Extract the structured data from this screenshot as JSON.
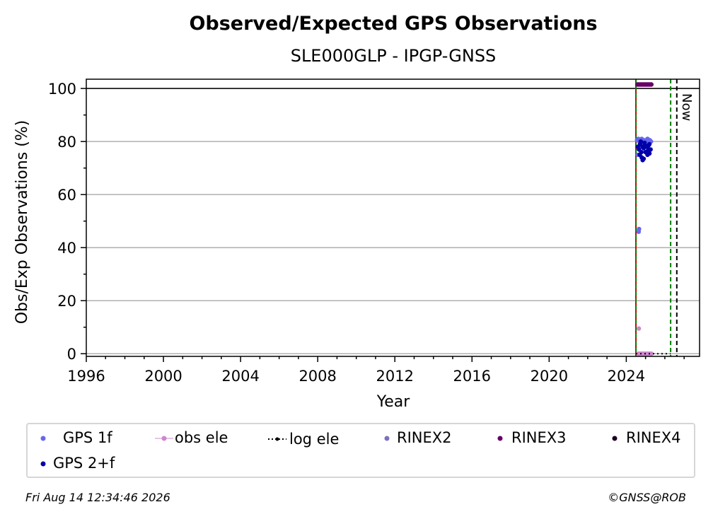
{
  "chart_data": {
    "type": "scatter",
    "title": "Observed/Expected GPS Observations",
    "subtitle": "SLE000GLP - IPGP-GNSS",
    "xlabel": "Year",
    "ylabel": "Obs/Exp Observations (%)",
    "xlim": [
      1996,
      2027.8
    ],
    "ylim": [
      -1,
      103.5
    ],
    "x_ticks": [
      1996,
      2000,
      2004,
      2008,
      2012,
      2016,
      2020,
      2024
    ],
    "y_ticks": [
      0,
      20,
      40,
      60,
      80,
      100
    ],
    "grid": "horizontal",
    "reference_line_y": 100,
    "vertical_lines": [
      {
        "x": 2024.5,
        "style": "solid",
        "color": "#cc0000"
      },
      {
        "x": 2024.5,
        "style": "dashed",
        "color": "#008000"
      },
      {
        "x": 2026.3,
        "style": "dashed",
        "color": "#008000"
      },
      {
        "x": 2026.62,
        "style": "dashed",
        "color": "#000000",
        "label": "Now"
      }
    ],
    "series": [
      {
        "name": "GPS 1f",
        "color": "#6666ee",
        "x": [
          2024.56,
          2024.62,
          2024.68,
          2024.74,
          2024.8,
          2024.86,
          2024.92,
          2024.98,
          2025.04,
          2025.1,
          2025.16,
          2025.22,
          2025.28,
          2024.6,
          2024.64,
          2024.66,
          2024.7
        ],
        "y": [
          80.5,
          81,
          80,
          80.5,
          81,
          80,
          80.5,
          80,
          80.5,
          81,
          80,
          80.5,
          80,
          75,
          46,
          47,
          79
        ]
      },
      {
        "name": "obs ele",
        "color": "#cc88cc",
        "x": [
          2024.62,
          2024.7,
          2024.8,
          2024.9,
          2025.0,
          2025.1,
          2025.2,
          2025.3,
          2024.65
        ],
        "y": [
          0,
          0,
          0,
          0,
          0,
          0,
          0,
          0,
          9.5
        ]
      },
      {
        "name": "log ele",
        "color": "#000000",
        "x": [
          2024.5,
          2026.3
        ],
        "y": [
          0,
          0
        ]
      },
      {
        "name": "RINEX2",
        "color": "#7f6fbf",
        "x": [],
        "y": []
      },
      {
        "name": "RINEX3",
        "color": "#660066",
        "x": [
          2024.58,
          2024.64,
          2024.7,
          2024.76,
          2024.82,
          2024.88,
          2024.94,
          2025.0,
          2025.06,
          2025.12,
          2025.18,
          2025.24,
          2025.3
        ],
        "y": [
          101.5,
          101.5,
          101.5,
          101.5,
          101.5,
          101.5,
          101.5,
          101.5,
          101.5,
          101.5,
          101.5,
          101.5,
          101.5
        ]
      },
      {
        "name": "RINEX4",
        "color": "#1a0020",
        "x": [],
        "y": []
      },
      {
        "name": "GPS 2+f",
        "color": "#0000aa",
        "x": [
          2024.6,
          2024.66,
          2024.72,
          2024.78,
          2024.84,
          2024.9,
          2024.96,
          2025.02,
          2025.08,
          2025.14,
          2025.2,
          2025.26,
          2024.7,
          2024.8,
          2024.9,
          2025.0,
          2025.1,
          2025.2,
          2024.75,
          2024.95,
          2025.15,
          2024.85
        ],
        "y": [
          78,
          77,
          79,
          76,
          78,
          77.5,
          79,
          76,
          78,
          77,
          79,
          77,
          75,
          74,
          73.5,
          76,
          75,
          75.5,
          80,
          79.5,
          78.5,
          73
        ]
      }
    ],
    "legend": {
      "placement": "bottom",
      "entries": [
        "GPS 1f",
        "obs ele",
        "log ele",
        "RINEX2",
        "RINEX3",
        "RINEX4",
        "GPS 2+f"
      ]
    }
  },
  "footer": {
    "timestamp": "Fri Aug 14 12:34:46 2026",
    "credit": "©GNSS@ROB"
  }
}
